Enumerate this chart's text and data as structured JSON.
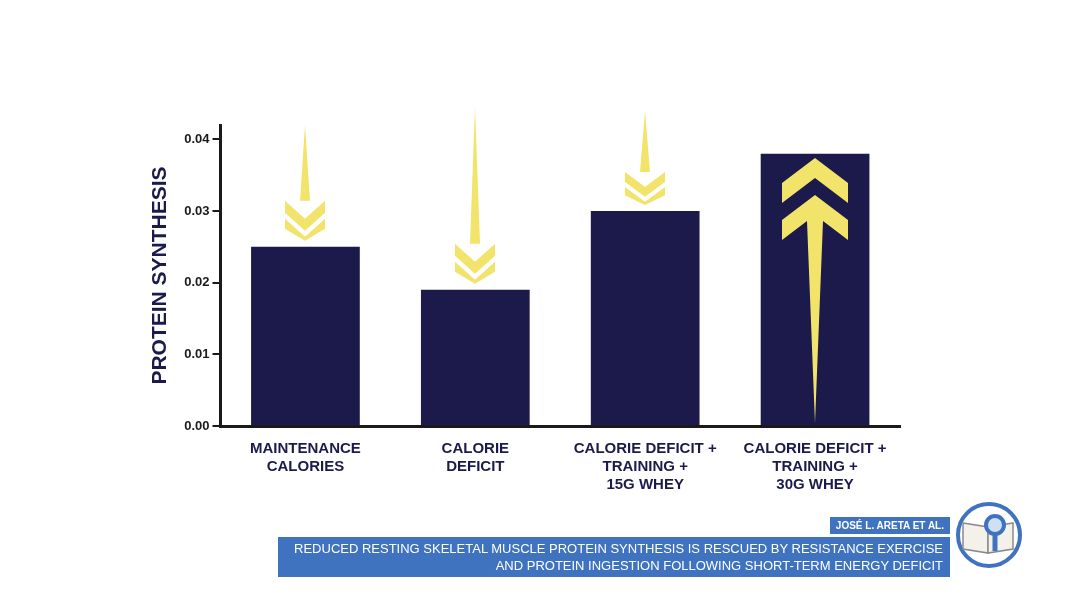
{
  "chart_data": {
    "type": "bar",
    "categories": [
      "MAINTENANCE\nCALORIES",
      "CALORIE\nDEFICIT",
      "CALORIE DEFICIT +\nTRAINING +\n15G WHEY",
      "CALORIE DEFICIT +\nTRAINING +\n30G WHEY"
    ],
    "values": [
      0.025,
      0.019,
      0.03,
      0.038
    ],
    "color": "#1b1a4a",
    "ylabel": "PROTEIN SYNTHESIS",
    "ylim": [
      0,
      0.042
    ],
    "yticks": [
      {
        "value": 0,
        "label": "0.00"
      },
      {
        "value": 0.01,
        "label": "0.01"
      },
      {
        "value": 0.02,
        "label": "0.02"
      },
      {
        "value": 0.03,
        "label": "0.03"
      },
      {
        "value": 0.04,
        "label": "0.04"
      }
    ],
    "annotations": [
      "JOSÉ L. ARETA ET AL.",
      "REDUCED RESTING SKELETAL MUSCLE PROTEIN SYNTHESIS IS RESCUED BY RESISTANCE EXERCISE AND PROTEIN INGESTION FOLLOWING SHORT-TERM ENERGY DEFICIT"
    ]
  }
}
